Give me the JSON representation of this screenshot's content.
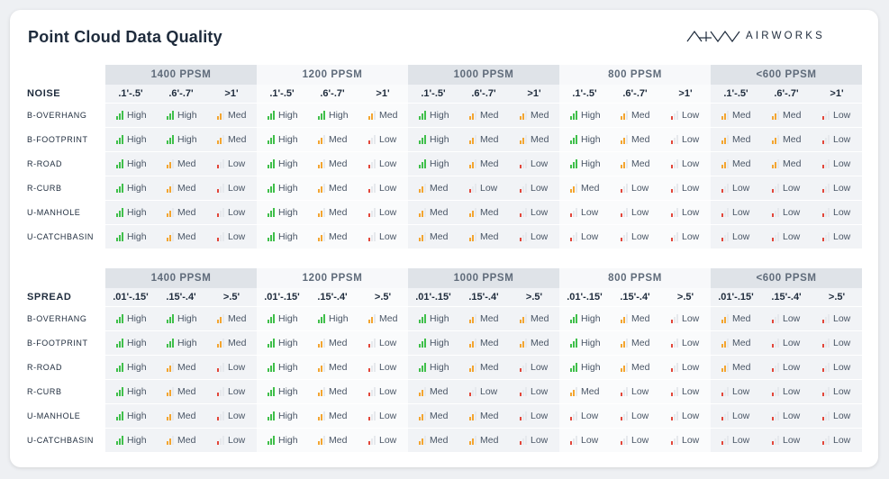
{
  "title": "Point Cloud Data Quality",
  "logo_text": "AIRWORKS",
  "colors": {
    "high": "#3fbf4a",
    "med": "#f3a530",
    "low": "#e2463a"
  },
  "groups": [
    "1400 PPSM",
    "1200 PPSM",
    "1000 PPSM",
    "800 PPSM",
    "<600 PPSM"
  ],
  "noise": {
    "label": "NOISE",
    "sub_headers": [
      ".1'-.5'",
      ".6'-.7'",
      ">1'"
    ],
    "rows": [
      {
        "label": "B-OVERHANG",
        "values": [
          "High",
          "High",
          "Med",
          "High",
          "High",
          "Med",
          "High",
          "Med",
          "Med",
          "High",
          "Med",
          "Low",
          "Med",
          "Med",
          "Low"
        ]
      },
      {
        "label": "B-FOOTPRINT",
        "values": [
          "High",
          "High",
          "Med",
          "High",
          "Med",
          "Low",
          "High",
          "Med",
          "Med",
          "High",
          "Med",
          "Low",
          "Med",
          "Med",
          "Low"
        ]
      },
      {
        "label": "R-ROAD",
        "values": [
          "High",
          "Med",
          "Low",
          "High",
          "Med",
          "Low",
          "High",
          "Med",
          "Low",
          "High",
          "Med",
          "Low",
          "Med",
          "Med",
          "Low"
        ]
      },
      {
        "label": "R-CURB",
        "values": [
          "High",
          "Med",
          "Low",
          "High",
          "Med",
          "Low",
          "Med",
          "Low",
          "Low",
          "Med",
          "Low",
          "Low",
          "Low",
          "Low",
          "Low"
        ]
      },
      {
        "label": "U-MANHOLE",
        "values": [
          "High",
          "Med",
          "Low",
          "High",
          "Med",
          "Low",
          "Med",
          "Med",
          "Low",
          "Low",
          "Low",
          "Low",
          "Low",
          "Low",
          "Low"
        ]
      },
      {
        "label": "U-CATCHBASIN",
        "values": [
          "High",
          "Med",
          "Low",
          "High",
          "Med",
          "Low",
          "Med",
          "Med",
          "Low",
          "Low",
          "Low",
          "Low",
          "Low",
          "Low",
          "Low"
        ]
      }
    ]
  },
  "spread": {
    "label": "SPREAD",
    "sub_headers": [
      ".01'-.15'",
      ".15'-.4'",
      ">.5'"
    ],
    "rows": [
      {
        "label": "B-OVERHANG",
        "values": [
          "High",
          "High",
          "Med",
          "High",
          "High",
          "Med",
          "High",
          "Med",
          "Med",
          "High",
          "Med",
          "Low",
          "Med",
          "Low",
          "Low"
        ]
      },
      {
        "label": "B-FOOTPRINT",
        "values": [
          "High",
          "High",
          "Med",
          "High",
          "Med",
          "Low",
          "High",
          "Med",
          "Med",
          "High",
          "Med",
          "Low",
          "Med",
          "Low",
          "Low"
        ]
      },
      {
        "label": "R-ROAD",
        "values": [
          "High",
          "Med",
          "Low",
          "High",
          "Med",
          "Low",
          "High",
          "Med",
          "Low",
          "High",
          "Med",
          "Low",
          "Med",
          "Low",
          "Low"
        ]
      },
      {
        "label": "R-CURB",
        "values": [
          "High",
          "Med",
          "Low",
          "High",
          "Med",
          "Low",
          "Med",
          "Low",
          "Low",
          "Med",
          "Low",
          "Low",
          "Low",
          "Low",
          "Low"
        ]
      },
      {
        "label": "U-MANHOLE",
        "values": [
          "High",
          "Med",
          "Low",
          "High",
          "Med",
          "Low",
          "Med",
          "Med",
          "Low",
          "Low",
          "Low",
          "Low",
          "Low",
          "Low",
          "Low"
        ]
      },
      {
        "label": "U-CATCHBASIN",
        "values": [
          "High",
          "Med",
          "Low",
          "High",
          "Med",
          "Low",
          "Med",
          "Med",
          "Low",
          "Low",
          "Low",
          "Low",
          "Low",
          "Low",
          "Low"
        ]
      }
    ]
  }
}
